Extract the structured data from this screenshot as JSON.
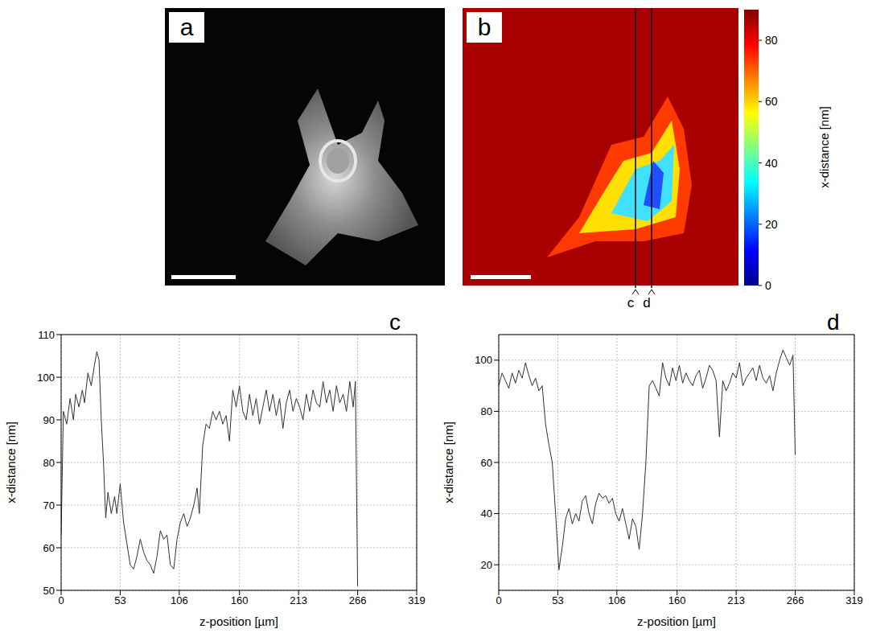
{
  "images": [
    {
      "label": "a"
    },
    {
      "label": "b",
      "colorbar": {
        "label": "x-distance [nm]",
        "range": [
          0,
          90
        ],
        "ticks": [
          0,
          20,
          40,
          60,
          80
        ]
      },
      "profile_lines": [
        "c",
        "d"
      ]
    }
  ],
  "chart_data": [
    {
      "type": "line",
      "title": "c",
      "x_label": "z-position [µm]",
      "y_label": "x-distance [nm]",
      "xlim": [
        0,
        319
      ],
      "xticks": [
        0,
        53,
        106,
        160,
        213,
        266,
        319
      ],
      "ylim": [
        50,
        110
      ],
      "yticks": [
        50,
        60,
        70,
        80,
        90,
        100,
        110
      ],
      "grid": true,
      "color": "#333333",
      "x": [
        0,
        2,
        5,
        8,
        11,
        13,
        16,
        19,
        21,
        24,
        27,
        30,
        32,
        34,
        36,
        38,
        40,
        42,
        45,
        48,
        50,
        53,
        56,
        59,
        62,
        65,
        68,
        71,
        74,
        77,
        80,
        83,
        86,
        89,
        92,
        95,
        98,
        101,
        104,
        107,
        110,
        113,
        116,
        119,
        122,
        124,
        127,
        130,
        133,
        136,
        139,
        142,
        145,
        148,
        151,
        154,
        157,
        160,
        163,
        166,
        169,
        172,
        175,
        178,
        181,
        184,
        187,
        190,
        193,
        196,
        199,
        202,
        205,
        208,
        211,
        214,
        217,
        220,
        223,
        226,
        229,
        232,
        235,
        238,
        241,
        244,
        247,
        250,
        253,
        256,
        259,
        262,
        264,
        266
      ],
      "values": [
        63,
        92,
        89,
        95,
        90,
        96,
        93,
        97,
        94,
        101,
        98,
        103,
        106,
        104,
        90,
        80,
        67,
        73,
        68,
        72,
        68,
        75,
        66,
        61,
        56,
        55,
        58,
        62,
        59,
        57,
        56,
        54,
        58,
        64,
        62,
        63,
        56,
        55,
        62,
        66,
        68,
        65,
        67,
        70,
        74,
        68,
        84,
        89,
        88,
        92,
        90,
        92,
        89,
        91,
        85,
        97,
        93,
        98,
        92,
        90,
        96,
        91,
        95,
        89,
        93,
        97,
        92,
        96,
        91,
        95,
        88,
        94,
        97,
        92,
        95,
        93,
        90,
        96,
        92,
        97,
        94,
        93,
        99,
        94,
        97,
        92,
        98,
        94,
        96,
        92,
        99,
        93,
        99,
        51
      ]
    },
    {
      "type": "line",
      "title": "d",
      "x_label": "z-position [µm]",
      "y_label": "x-distance [nm]",
      "xlim": [
        0,
        319
      ],
      "xticks": [
        0,
        53,
        106,
        160,
        213,
        266,
        319
      ],
      "ylim": [
        10,
        110
      ],
      "yticks": [
        20,
        40,
        60,
        80,
        100
      ],
      "grid": true,
      "color": "#333333",
      "x": [
        0,
        3,
        6,
        9,
        12,
        15,
        18,
        21,
        24,
        27,
        30,
        33,
        36,
        39,
        42,
        45,
        48,
        51,
        54,
        57,
        60,
        63,
        66,
        69,
        72,
        75,
        78,
        81,
        84,
        87,
        90,
        93,
        96,
        99,
        102,
        105,
        108,
        111,
        114,
        117,
        120,
        123,
        126,
        129,
        132,
        135,
        138,
        141,
        144,
        147,
        150,
        153,
        156,
        159,
        162,
        165,
        168,
        171,
        174,
        177,
        180,
        183,
        186,
        189,
        192,
        195,
        198,
        201,
        204,
        207,
        210,
        213,
        216,
        219,
        222,
        225,
        228,
        231,
        234,
        237,
        240,
        243,
        246,
        249,
        252,
        255,
        258,
        261,
        264,
        266
      ],
      "values": [
        90,
        95,
        92,
        89,
        95,
        91,
        96,
        93,
        99,
        94,
        90,
        93,
        88,
        90,
        75,
        67,
        60,
        40,
        18,
        27,
        38,
        42,
        36,
        40,
        37,
        45,
        47,
        40,
        36,
        44,
        48,
        46,
        47,
        44,
        46,
        40,
        37,
        42,
        36,
        30,
        38,
        35,
        26,
        40,
        60,
        90,
        92,
        89,
        86,
        99,
        93,
        90,
        97,
        92,
        98,
        91,
        95,
        92,
        90,
        94,
        96,
        89,
        93,
        98,
        96,
        92,
        70,
        92,
        88,
        91,
        95,
        93,
        99,
        90,
        93,
        95,
        97,
        92,
        98,
        93,
        91,
        94,
        88,
        95,
        100,
        104,
        101,
        98,
        102,
        63
      ]
    }
  ]
}
